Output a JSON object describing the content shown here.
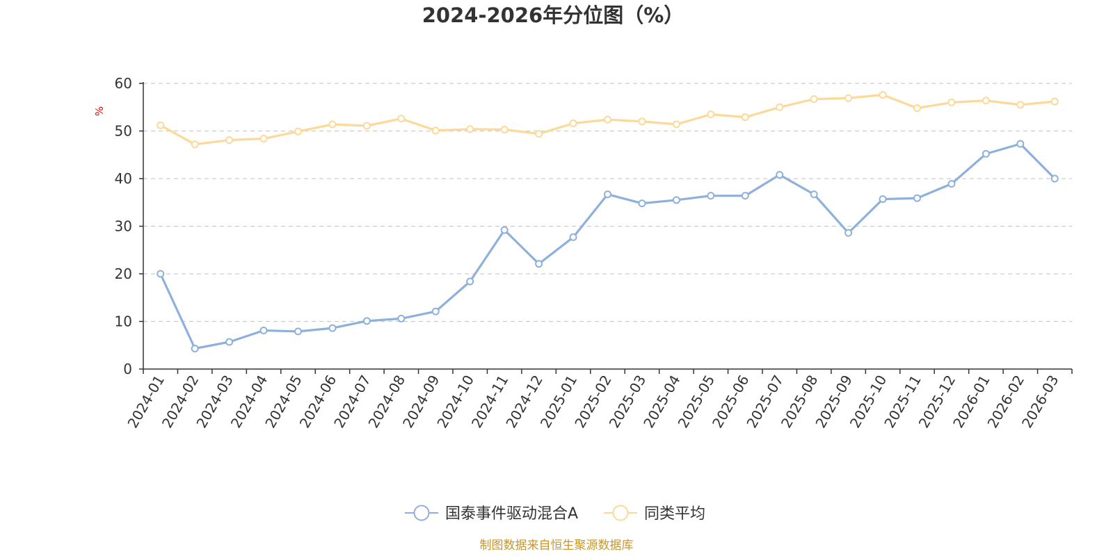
{
  "chart_data": {
    "type": "line",
    "title": "2024-2026年分位图（%）",
    "ylabel": "%",
    "xlabel": "",
    "ylim": [
      0,
      60
    ],
    "yticks": [
      0,
      10,
      20,
      30,
      40,
      50,
      60
    ],
    "grid": true,
    "legend_position": "bottom-center",
    "categories": [
      "2024-01",
      "2024-02",
      "2024-03",
      "2024-04",
      "2024-05",
      "2024-06",
      "2024-07",
      "2024-08",
      "2024-09",
      "2024-10",
      "2024-11",
      "2024-12",
      "2025-01",
      "2025-02",
      "2025-03",
      "2025-04",
      "2025-05",
      "2025-06",
      "2025-07",
      "2025-08",
      "2025-09",
      "2025-10",
      "2025-11",
      "2025-12",
      "2026-01",
      "2026-02",
      "2026-03"
    ],
    "series": [
      {
        "name": "国泰事件驱动混合A",
        "color": "#8eb0dc",
        "values": [
          20.0,
          4.3,
          5.7,
          8.1,
          7.9,
          8.6,
          10.1,
          10.6,
          12.1,
          18.4,
          29.2,
          22.1,
          27.7,
          36.7,
          34.8,
          35.5,
          36.4,
          36.4,
          40.8,
          36.7,
          28.6,
          35.7,
          35.9,
          38.9,
          45.2,
          47.3,
          40.0
        ]
      },
      {
        "name": "同类平均",
        "color": "#fcd998",
        "values": [
          51.2,
          47.2,
          48.1,
          48.4,
          49.9,
          51.4,
          51.1,
          52.6,
          50.1,
          50.4,
          50.3,
          49.4,
          51.6,
          52.4,
          52.0,
          51.4,
          53.5,
          52.9,
          55.0,
          56.7,
          56.9,
          57.6,
          54.8,
          56.0,
          56.4,
          55.5,
          56.2
        ]
      }
    ],
    "source": "制图数据来自恒生聚源数据库"
  }
}
